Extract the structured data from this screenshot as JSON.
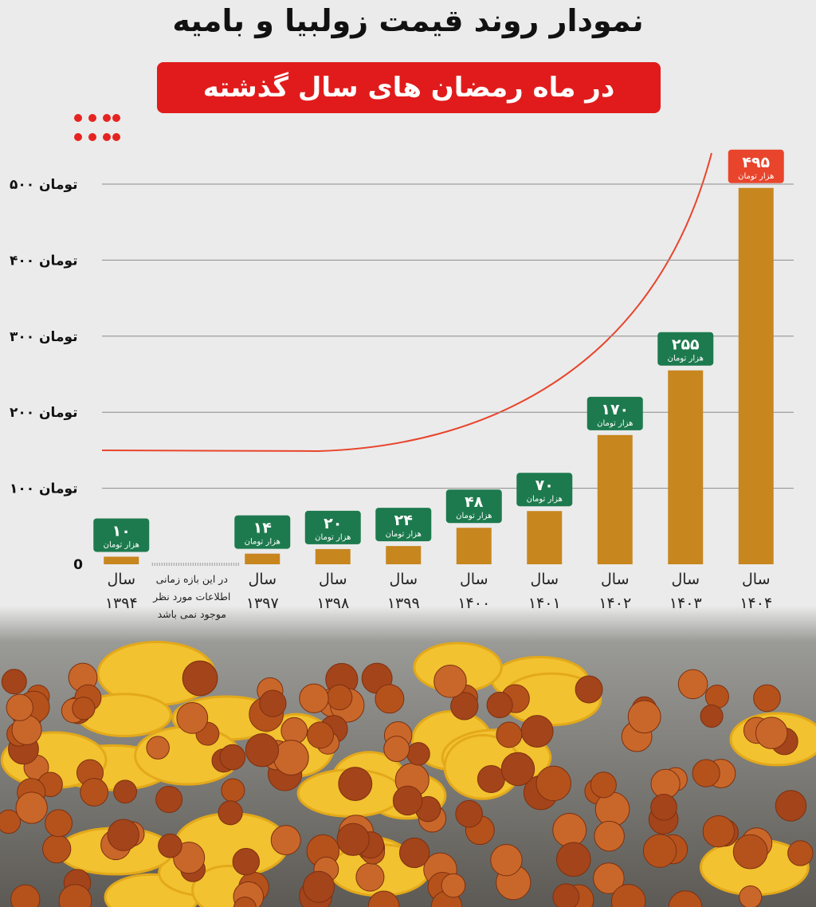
{
  "chart_data": {
    "type": "bar",
    "title": "نمودار روند قیمت زولبیا و بامیه",
    "subtitle": "در ماه رمضان های سال گذشته",
    "categories": [
      "سال ۱۳۹۴",
      null,
      "سال ۱۳۹۷",
      "سال ۱۳۹۸",
      "سال ۱۳۹۹",
      "سال ۱۴۰۰",
      "سال ۱۴۰۱",
      "سال ۱۴۰۲",
      "سال ۱۴۰۳",
      "سال ۱۴۰۴"
    ],
    "values": [
      10,
      null,
      14,
      20,
      24,
      48,
      70,
      170,
      255,
      495
    ],
    "value_labels": [
      "۱۰",
      null,
      "۱۴",
      "۲۰",
      "۲۴",
      "۴۸",
      "۷۰",
      "۱۷۰",
      "۲۵۵",
      "۴۹۵"
    ],
    "value_label_unit": "هزار تومان",
    "annotation": "در این بازه زمانی اطلاعات مورد نظر موجود نمی باشد",
    "color": "#c8861f",
    "label_color": "#1d7a4e",
    "highlight_color": "#e8452c",
    "ylim": [
      0,
      500
    ],
    "yticks": [
      0,
      {
        "value": 100,
        "label": "۱۰۰ تومان"
      },
      {
        "value": 200,
        "label": "۲۰۰ تومان"
      },
      {
        "value": 300,
        "label": "۳۰۰ تومان"
      },
      {
        "value": 400,
        "label": "۴۰۰ تومان"
      },
      {
        "value": 500,
        "label": "۵۰۰ تومان"
      }
    ],
    "grid": true
  }
}
